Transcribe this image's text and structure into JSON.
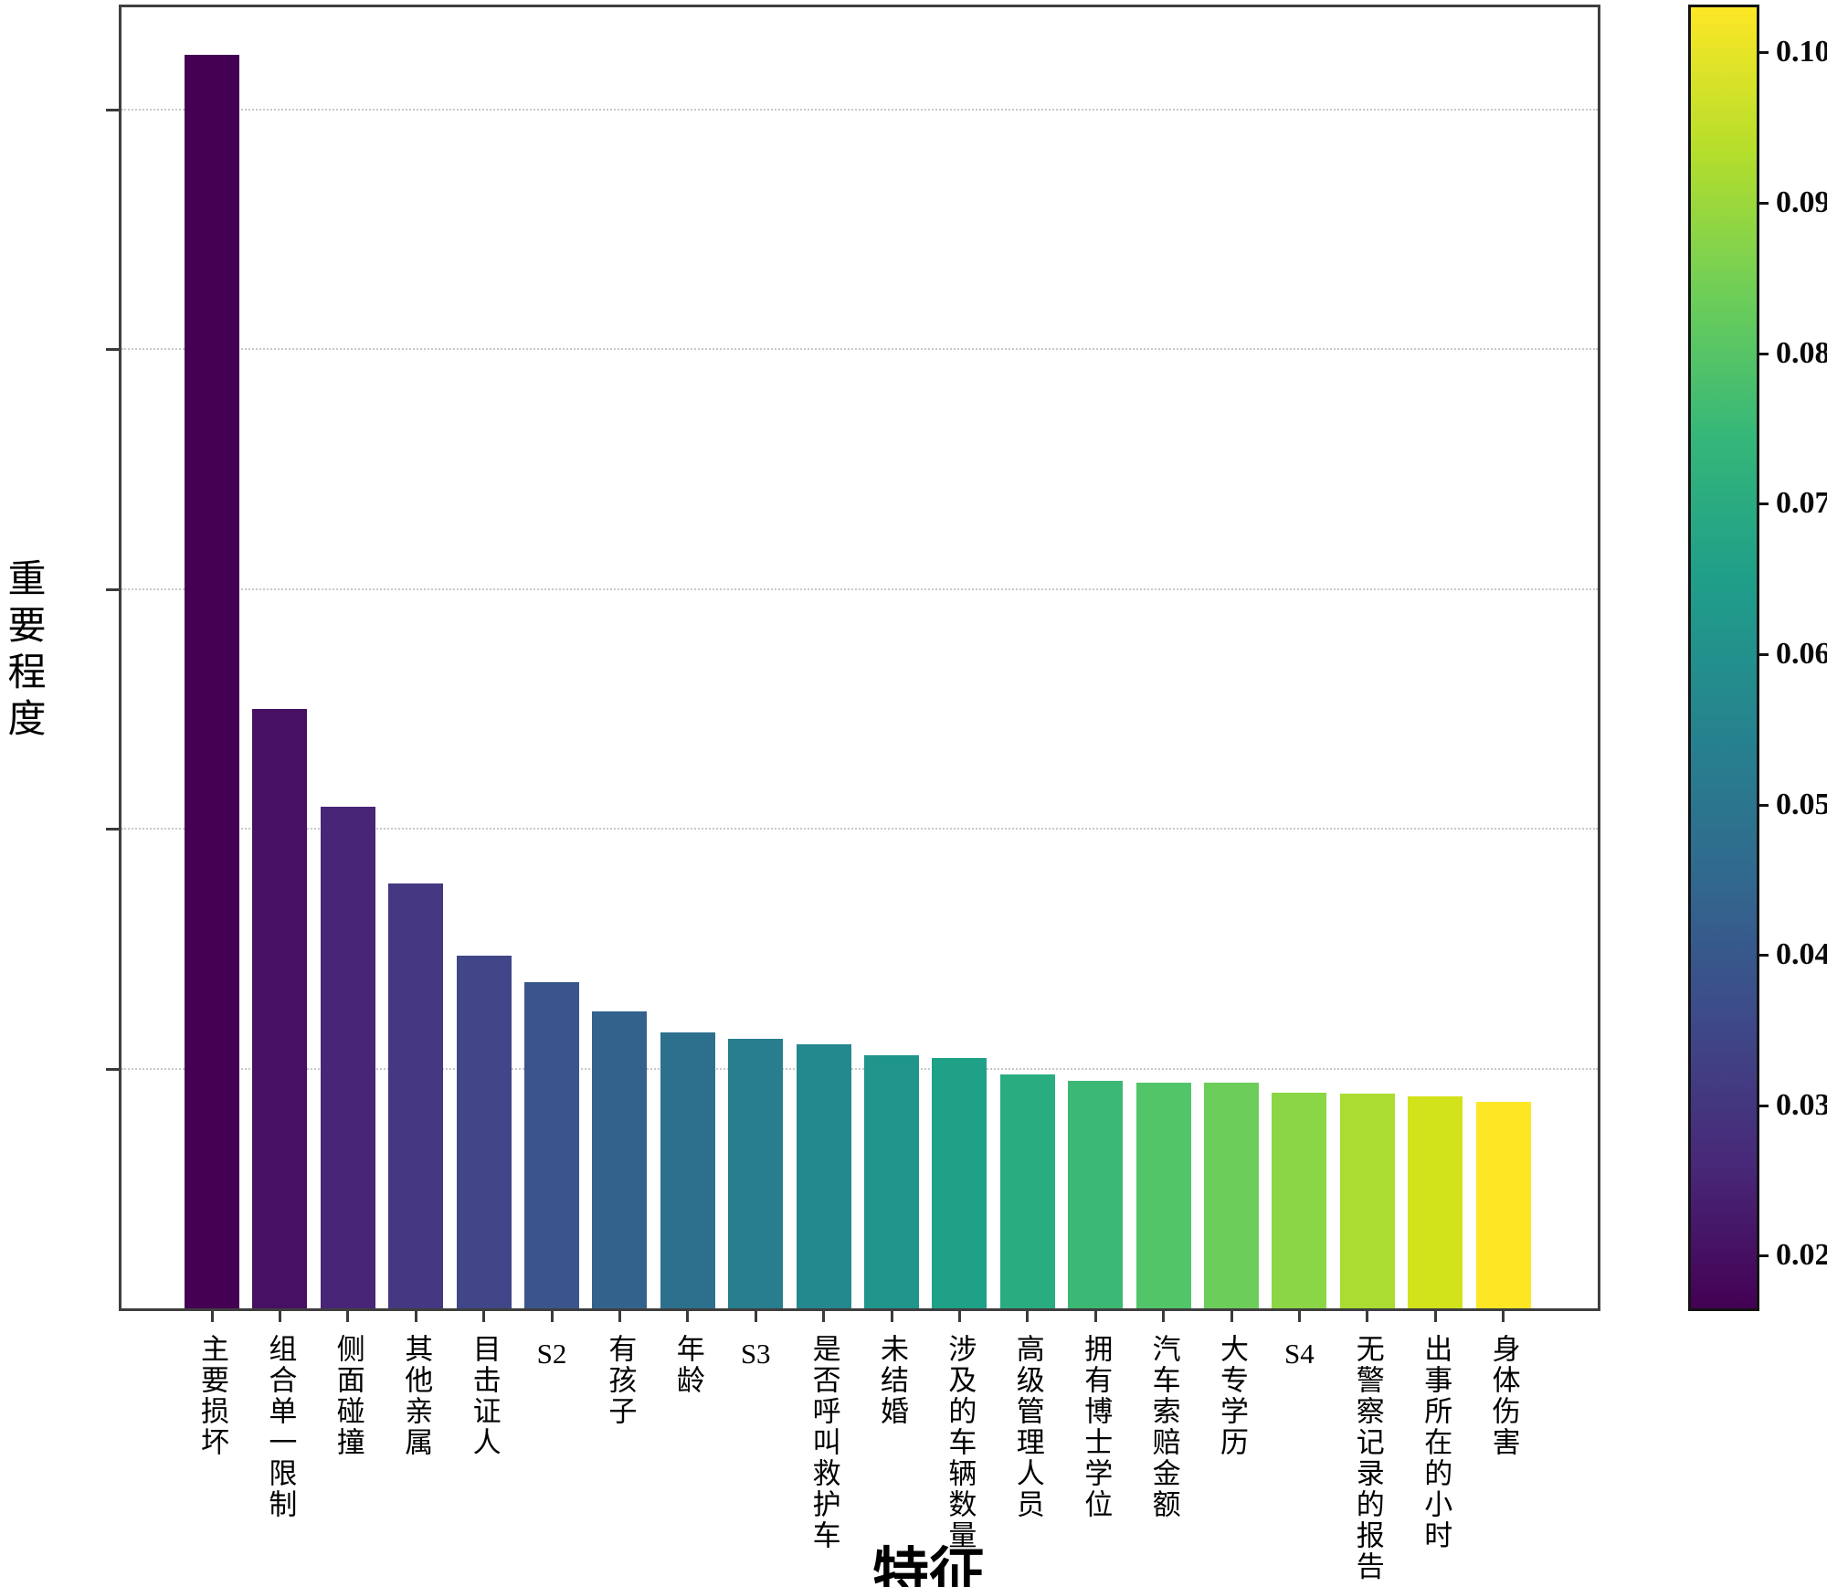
{
  "chart_data": {
    "type": "bar",
    "title": "",
    "xlabel": "特征",
    "ylabel": "重要程度",
    "categories": [
      "主要损坏",
      "组合单一限制",
      "侧面碰撞",
      "其他亲属",
      "目击证人",
      "S2",
      "有孩子",
      "年龄",
      "S3",
      "是否呼叫救护车",
      "未结婚",
      "涉及的车辆数量",
      "高级管理人员",
      "拥有博士学位",
      "汽车索赔金额",
      "大专学历",
      "S4",
      "无警察记录的报告",
      "出事所在的小时",
      "身体伤害"
    ],
    "values": [
      0.1045,
      0.05,
      0.0418,
      0.0354,
      0.0294,
      0.0272,
      0.0248,
      0.023,
      0.0225,
      0.022,
      0.0211,
      0.0209,
      0.0195,
      0.019,
      0.0188,
      0.0188,
      0.018,
      0.0179,
      0.0177,
      0.0172
    ],
    "bar_colors": [
      "#440154",
      "#471063",
      "#482576",
      "#453781",
      "#404688",
      "#39558c",
      "#33638d",
      "#2d708e",
      "#287d8e",
      "#23898e",
      "#1f958b",
      "#1fa188",
      "#29ad80",
      "#3cb875",
      "#52c569",
      "#6ccd5a",
      "#8bd646",
      "#aadc32",
      "#d2e21b",
      "#fde725"
    ],
    "ylim": [
      0,
      0.1085
    ],
    "grid_values": [
      0.02,
      0.04,
      0.06,
      0.08,
      0.1
    ],
    "grid_style": "dotted horizontal gridlines, no y tick labels",
    "legend": "none",
    "colorbar": {
      "colormap": "viridis",
      "tick_labels": [
        "0.10",
        "0.09",
        "0.08",
        "0.07",
        "0.06",
        "0.05",
        "0.04",
        "0.03",
        "0.02"
      ],
      "position": "right"
    }
  }
}
